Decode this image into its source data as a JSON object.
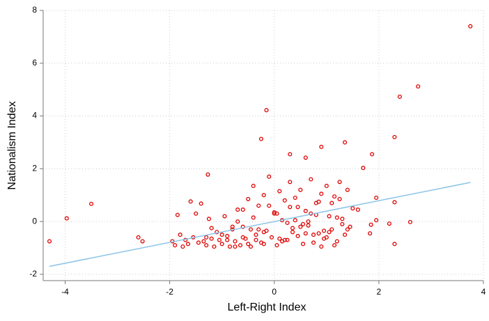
{
  "chart_data": {
    "type": "scatter",
    "xlabel": "Left-Right Index",
    "ylabel": "Nationalism Index",
    "xlim": [
      -4.42,
      4.0
    ],
    "ylim": [
      -2.24,
      8
    ],
    "xticks": [
      -4,
      -2,
      0,
      2,
      4
    ],
    "yticks": [
      -2,
      0,
      2,
      4,
      6,
      8
    ],
    "grid": true,
    "series": [
      {
        "color": "#e00000",
        "x": [
          -4.3,
          -3.97,
          -3.5,
          -2.6,
          -2.52,
          3.75,
          2.75,
          2.4,
          2.3,
          -0.15,
          -0.25,
          1.35,
          0.9,
          0.3,
          1.87,
          -1.27,
          1.7,
          0.6,
          1.95,
          2.3,
          2.6,
          2.3,
          1.85,
          1.95,
          1.83,
          2.2,
          -1.6,
          -1.4,
          -1.95,
          -1.9,
          -1.85,
          -1.8,
          -1.75,
          -1.7,
          -1.65,
          -1.55,
          -1.5,
          -1.45,
          -1.35,
          -1.3,
          -1.25,
          -1.2,
          -1.15,
          -1.1,
          -1.05,
          -1.0,
          -0.95,
          -0.9,
          -0.85,
          -0.8,
          -0.75,
          -0.7,
          -0.65,
          -0.6,
          -0.55,
          -0.5,
          -0.45,
          -0.4,
          -0.35,
          -0.3,
          -0.25,
          -0.2,
          -0.15,
          -0.1,
          -0.05,
          0.0,
          0.05,
          0.1,
          0.15,
          0.2,
          0.25,
          0.3,
          0.35,
          0.4,
          0.45,
          0.5,
          0.55,
          0.6,
          0.65,
          0.7,
          0.75,
          0.8,
          0.85,
          0.9,
          0.95,
          1.0,
          1.05,
          1.1,
          1.15,
          1.2,
          1.25,
          1.3,
          1.35,
          1.4,
          1.45,
          1.5,
          1.6,
          -1.2,
          -1.0,
          -0.8,
          -0.6,
          -0.4,
          -0.2,
          0.0,
          0.2,
          0.4,
          0.6,
          0.8,
          1.0,
          1.2,
          1.4,
          -0.9,
          -0.7,
          -0.5,
          -0.3,
          -0.1,
          0.1,
          0.3,
          0.5,
          0.7,
          0.9,
          1.1,
          1.3,
          -0.45,
          -0.35,
          0.05,
          0.25,
          0.45,
          0.65,
          0.85,
          1.05,
          1.25,
          -0.6,
          -0.2,
          0.15,
          0.55,
          0.95,
          -1.3,
          -0.75,
          0.35,
          0.75,
          1.15
        ],
        "values": [
          -0.75,
          0.12,
          0.67,
          -0.6,
          -0.75,
          7.4,
          5.12,
          4.73,
          3.2,
          4.22,
          3.13,
          3.0,
          2.83,
          2.55,
          2.55,
          1.78,
          2.03,
          2.42,
          0.9,
          0.73,
          -0.02,
          -0.85,
          -0.12,
          0.05,
          -0.45,
          -0.08,
          0.76,
          0.68,
          -0.75,
          -0.9,
          0.25,
          -0.5,
          -0.95,
          -0.7,
          -0.85,
          -0.6,
          0.3,
          -0.8,
          -0.75,
          -0.9,
          0.1,
          -0.65,
          -0.95,
          -0.4,
          -0.7,
          -0.85,
          0.2,
          -0.55,
          -0.95,
          -0.3,
          -0.75,
          0.45,
          -0.9,
          -0.2,
          -0.65,
          0.85,
          -0.95,
          1.35,
          -0.5,
          0.6,
          -0.8,
          1.0,
          -0.35,
          1.7,
          -0.6,
          0.3,
          -0.9,
          1.15,
          0.05,
          0.8,
          -0.7,
          1.5,
          -0.25,
          0.9,
          -0.55,
          1.2,
          -0.85,
          0.4,
          -0.15,
          1.6,
          -0.8,
          0.7,
          -0.45,
          1.05,
          -0.65,
          1.35,
          0.2,
          -0.3,
          0.95,
          -0.75,
          1.5,
          0.1,
          -0.5,
          1.2,
          -0.2,
          0.5,
          0.45,
          -0.25,
          -0.5,
          -0.2,
          -0.6,
          0.15,
          -0.4,
          0.35,
          -0.7,
          0.05,
          -0.45,
          0.25,
          -0.6,
          0.15,
          -0.3,
          -0.7,
          0.0,
          -0.85,
          -0.3,
          0.6,
          -0.65,
          0.55,
          -0.2,
          0.3,
          -0.95,
          0.7,
          -0.1,
          -0.3,
          -0.7,
          0.3,
          -0.05,
          0.55,
          0.0,
          0.75,
          -0.4,
          0.85,
          0.45,
          -0.85,
          -0.75,
          -0.1,
          -0.35,
          -0.6,
          -0.95,
          -0.4,
          -0.5,
          -0.9
        ]
      },
      {
        "color": "#89c4e8",
        "x": [
          -4.3,
          3.75
        ],
        "values": [
          -1.7,
          1.48
        ]
      }
    ]
  }
}
